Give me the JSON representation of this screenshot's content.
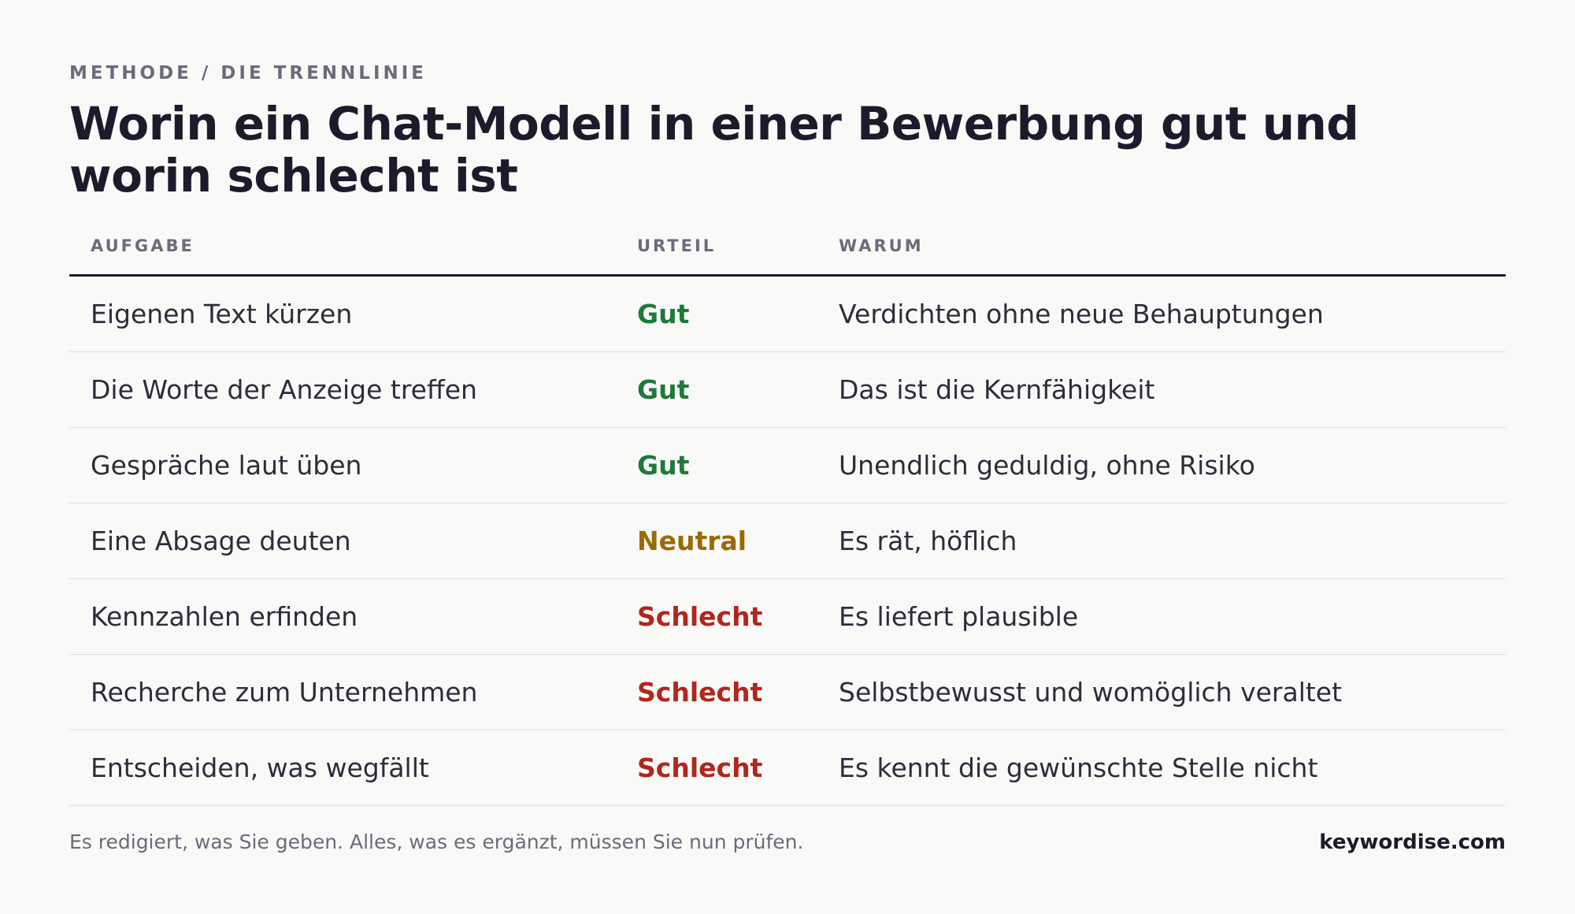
{
  "eyebrow": "METHODE / DIE TRENNLINIE",
  "title": "Worin ein Chat-Modell in einer Bewerbung gut und worin schlecht ist",
  "table": {
    "headers": {
      "task": "AUFGABE",
      "verdict": "URTEIL",
      "why": "WARUM"
    },
    "rows": [
      {
        "task": "Eigenen Text kürzen",
        "verdict": "Gut",
        "why": "Verdichten ohne neue Behauptungen",
        "verdict_color": "#1f7a3a"
      },
      {
        "task": "Die Worte der Anzeige treffen",
        "verdict": "Gut",
        "why": "Das ist die Kernfähigkeit",
        "verdict_color": "#1f7a3a"
      },
      {
        "task": "Gespräche laut üben",
        "verdict": "Gut",
        "why": "Unendlich geduldig, ohne Risiko",
        "verdict_color": "#1f7a3a"
      },
      {
        "task": "Eine Absage deuten",
        "verdict": "Neutral",
        "why": "Es rät, höflich",
        "verdict_color": "#9a6b00"
      },
      {
        "task": "Kennzahlen erfinden",
        "verdict": "Schlecht",
        "why": "Es liefert plausible",
        "verdict_color": "#b0271d"
      },
      {
        "task": "Recherche zum Unternehmen",
        "verdict": "Schlecht",
        "why": "Selbstbewusst und womöglich veraltet",
        "verdict_color": "#b0271d"
      },
      {
        "task": "Entscheiden, was wegfällt",
        "verdict": "Schlecht",
        "why": "Es kennt die gewünschte Stelle nicht",
        "verdict_color": "#b0271d"
      }
    ]
  },
  "footer": {
    "note": "Es redigiert, was Sie geben. Alles, was es ergänzt, müssen Sie nun prüfen.",
    "brand": "keywordise.com"
  },
  "colors": {
    "good": "#1f7a3a",
    "neutral": "#9a6b00",
    "bad": "#b0271d",
    "background": "#f9f9f8",
    "heading": "#1b1b2b"
  }
}
